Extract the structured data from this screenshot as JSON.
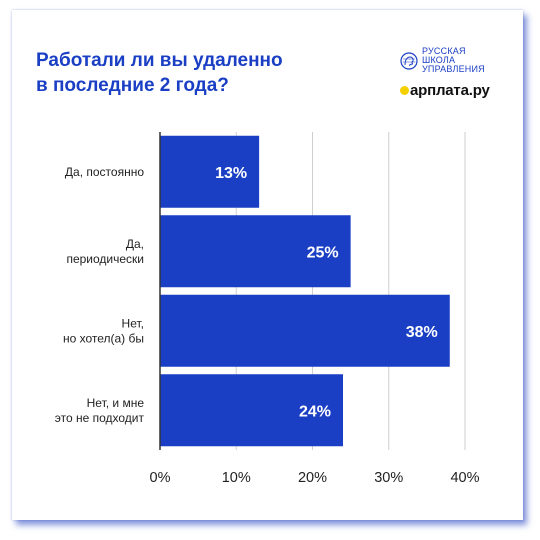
{
  "title_lines": [
    "Работали ли вы удаленно",
    "в последние 2 года?"
  ],
  "logos": {
    "rshu_lines": [
      "РУССКАЯ",
      "ШКОЛА",
      "УПРАВЛЕНИЯ"
    ],
    "zarplata": "арплата.ру"
  },
  "colors": {
    "bar": "#1a3fc4",
    "title": "#1a3fc4",
    "grid": "#cfcfcf",
    "axis": "#333333",
    "shadow": "#1e3cbe"
  },
  "chart_data": {
    "type": "bar",
    "orientation": "horizontal",
    "categories": [
      [
        "Да, постоянно"
      ],
      [
        "Да,",
        "периодически"
      ],
      [
        "Нет,",
        "но хотел(а) бы"
      ],
      [
        "Нет, и мне",
        "это не подходит"
      ]
    ],
    "values": [
      13,
      25,
      38,
      24
    ],
    "value_labels": [
      "13%",
      "25%",
      "38%",
      "24%"
    ],
    "xlim": [
      0,
      40
    ],
    "xticks": [
      0,
      10,
      20,
      30,
      40
    ],
    "xtick_labels": [
      "0%",
      "10%",
      "20%",
      "30%",
      "40%"
    ],
    "grid": true,
    "xlabel": "",
    "ylabel": ""
  }
}
